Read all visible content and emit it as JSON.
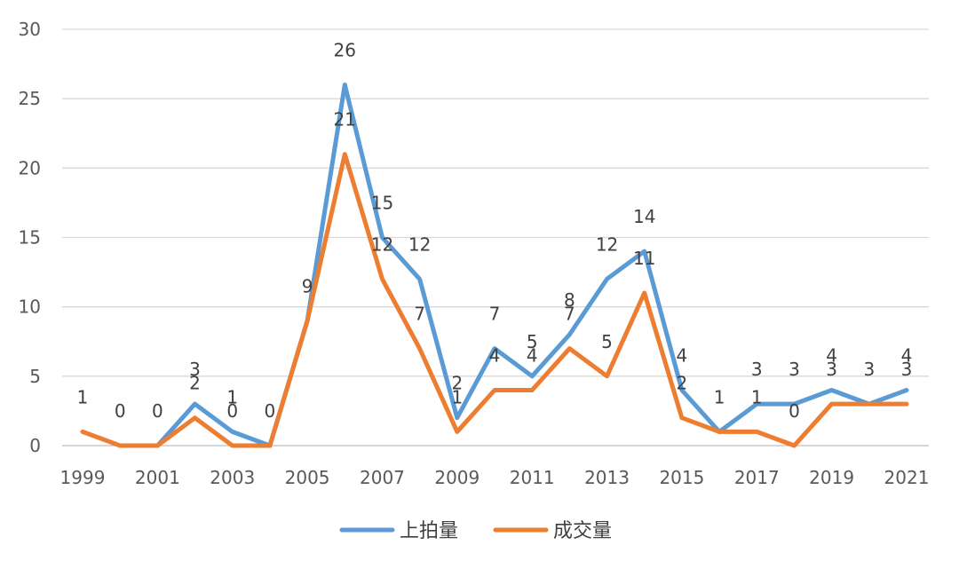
{
  "chart_data": {
    "type": "line",
    "title": "",
    "xlabel": "",
    "ylabel": "",
    "ylim": [
      0,
      30
    ],
    "y_ticks": [
      "0",
      "5",
      "10",
      "15",
      "20",
      "25",
      "30"
    ],
    "x": [
      "1999",
      "2000",
      "2001",
      "2002",
      "2003",
      "2004",
      "2005",
      "2006",
      "2007",
      "2008",
      "2009",
      "2010",
      "2011",
      "2012",
      "2013",
      "2014",
      "2015",
      "2016",
      "2017",
      "2018",
      "2019",
      "2020",
      "2021"
    ],
    "x_tick_labels": [
      "1999",
      "2001",
      "2003",
      "2005",
      "2007",
      "2009",
      "2011",
      "2013",
      "2015",
      "2017",
      "2019",
      "2021"
    ],
    "grid": true,
    "legend_position": "bottom",
    "series": [
      {
        "name": "上拍量",
        "color": "#5B9BD5",
        "values": [
          null,
          null,
          0,
          3,
          1,
          0,
          9,
          26,
          15,
          12,
          2,
          7,
          5,
          8,
          12,
          14,
          4,
          1,
          3,
          3,
          4,
          3,
          4
        ],
        "labels": [
          "",
          "",
          "",
          "3",
          "1",
          "",
          "",
          "26",
          "15",
          "12",
          "2",
          "7",
          "5",
          "8",
          "12",
          "14",
          "4",
          "1",
          "3",
          "3",
          "4",
          "3",
          "4"
        ]
      },
      {
        "name": "成交量",
        "color": "#ED7D31",
        "values": [
          1,
          0,
          0,
          2,
          0,
          0,
          9,
          21,
          12,
          7,
          1,
          4,
          4,
          7,
          5,
          11,
          2,
          1,
          1,
          0,
          3,
          3,
          3
        ],
        "labels": [
          "1",
          "0",
          "0",
          "2",
          "0",
          "0",
          "9",
          "21",
          "12",
          "7",
          "1",
          "4",
          "4",
          "7",
          "5",
          "11",
          "2",
          "",
          "1",
          "0",
          "3",
          "",
          "3"
        ]
      }
    ]
  }
}
